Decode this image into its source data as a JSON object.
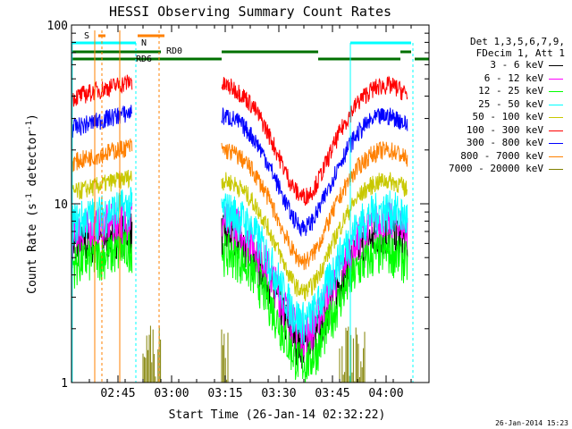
{
  "chart_data": {
    "type": "line",
    "title": "HESSI Observing Summary Count Rates",
    "xlabel": "Start Time (26-Jan-14 02:32:22)",
    "ylabel": "Count Rate (s",
    "ylabel_sup": "-1",
    "ylabel_tail": " detector",
    "ylabel_sup2": "-1",
    "ylabel_end": ")",
    "y_scale": "log",
    "ylim": [
      1,
      100
    ],
    "xlim_minutes_after_0232": [
      0,
      100
    ],
    "y_ticks": [
      {
        "value": 1,
        "label": "1"
      },
      {
        "value": 10,
        "label": "10"
      },
      {
        "value": 100,
        "label": "100"
      }
    ],
    "x_ticks": [
      {
        "minutes": 13,
        "label": "02:45"
      },
      {
        "minutes": 28,
        "label": "03:00"
      },
      {
        "minutes": 43,
        "label": "03:15"
      },
      {
        "minutes": 58,
        "label": "03:30"
      },
      {
        "minutes": 73,
        "label": "03:45"
      },
      {
        "minutes": 88,
        "label": "04:00"
      }
    ],
    "legend_header": [
      "Det 1,3,5,6,7,9,",
      "FDecim 1, Att 1"
    ],
    "series": [
      {
        "name": "3 - 6 keV",
        "color": "#000000",
        "level": 6.8
      },
      {
        "name": "6 - 12 keV",
        "color": "#ff00ff",
        "level": 8.0
      },
      {
        "name": "12 - 25 keV",
        "color": "#00ff00",
        "level": 5.4
      },
      {
        "name": "25 - 50 keV",
        "color": "#00ffff",
        "level": 9.3
      },
      {
        "name": "50 - 100 keV",
        "color": "#c8c800",
        "level": 13.5
      },
      {
        "name": "100 - 300 keV",
        "color": "#ff0000",
        "level": 46
      },
      {
        "name": "300 - 800 keV",
        "color": "#0000ff",
        "level": 31
      },
      {
        "name": "800 - 7000 keV",
        "color": "#ff8000",
        "level": 20
      },
      {
        "name": "7000 - 20000 keV",
        "color": "#808000",
        "level": 1.4
      }
    ],
    "flags": [
      {
        "label": "S",
        "color": "#ff8000"
      },
      {
        "label": "N",
        "color": "#00ffff"
      },
      {
        "label": "RD0",
        "color": "#007000"
      },
      {
        "label": "RD6",
        "color": "#007000"
      }
    ],
    "timestamp": "26-Jan-2014 15:23"
  }
}
